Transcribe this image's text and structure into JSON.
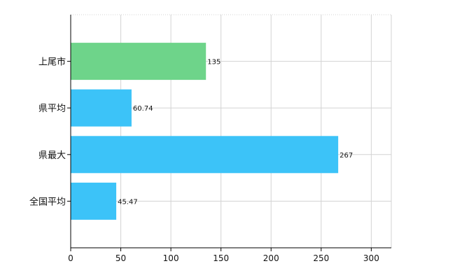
{
  "chart_data": {
    "type": "bar",
    "orientation": "horizontal",
    "categories": [
      "上尾市",
      "県平均",
      "県最大",
      "全国平均"
    ],
    "values": [
      135,
      60.74,
      267,
      45.47
    ],
    "value_labels": [
      "135",
      "60.74",
      "267",
      "45.47"
    ],
    "bar_colors": [
      "#6ed48a",
      "#3cc3f8",
      "#3cc3f8",
      "#3cc3f8"
    ],
    "xlim": [
      0,
      320
    ],
    "xticks": [
      0,
      50,
      100,
      150,
      200,
      250,
      300
    ],
    "grid": true,
    "title": "",
    "xlabel": "",
    "ylabel": ""
  },
  "colors": {
    "highlight": "#6ed48a",
    "default": "#3cc3f8",
    "grid": "#d3d3d3",
    "axis": "#000000"
  }
}
